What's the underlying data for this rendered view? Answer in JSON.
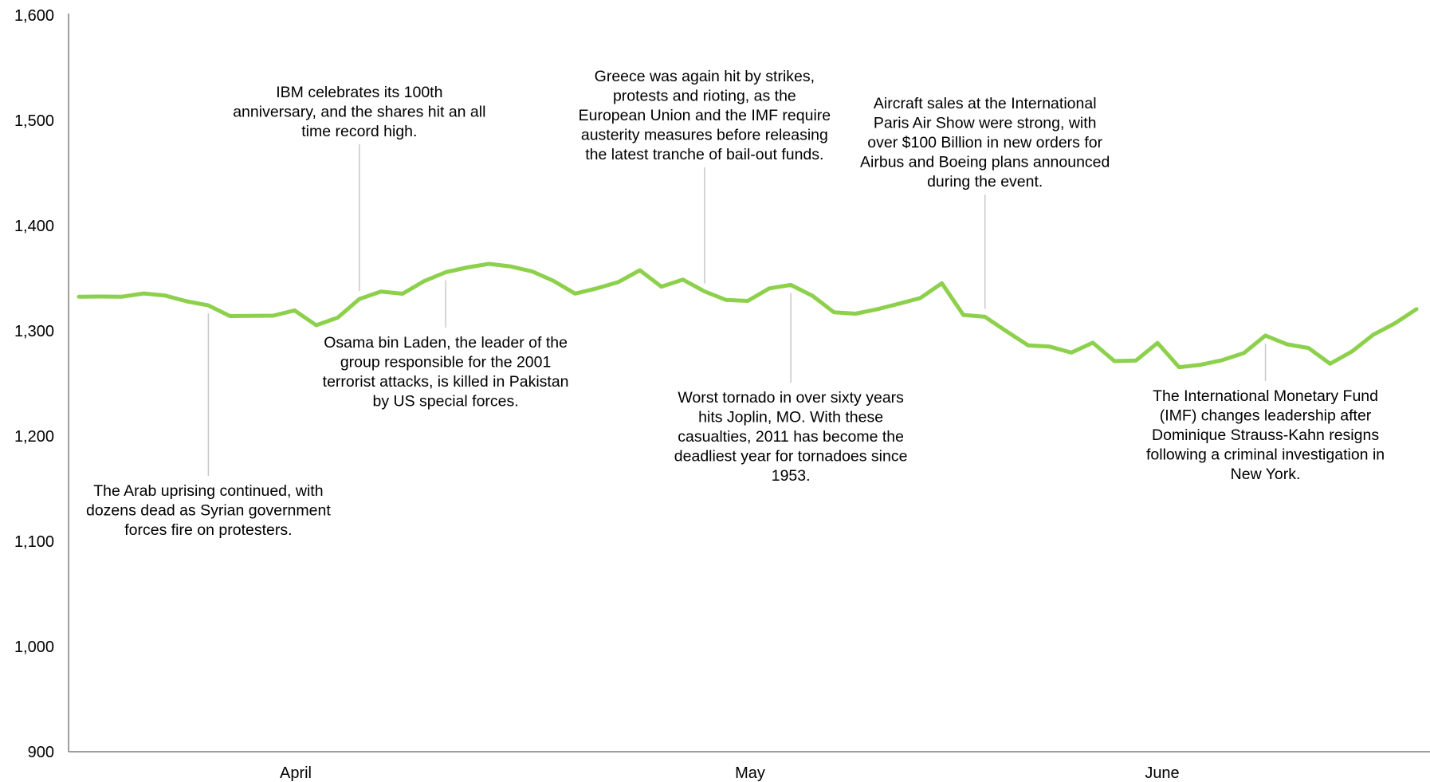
{
  "chart_data": {
    "type": "line",
    "title": "",
    "xlabel": "",
    "ylabel": "",
    "ylim": [
      900,
      1600
    ],
    "yticks": [
      "1,600",
      "1,500",
      "1,400",
      "1,300",
      "1,200",
      "1,100",
      "1,000",
      "900"
    ],
    "ytick_values": [
      1600,
      1500,
      1400,
      1300,
      1200,
      1100,
      1000,
      900
    ],
    "month_labels": [
      "April",
      "May",
      "June"
    ],
    "grid": false,
    "legend": "none",
    "line_color": "#8cd04c",
    "series": [
      {
        "values": [
          1332.4,
          1332.6,
          1332.4,
          1335.5,
          1333.5,
          1328.0,
          1324.2,
          1314.0,
          1314.2,
          1314.4,
          1319.4,
          1305.3,
          1312.6,
          1330.2,
          1337.3,
          1335.2,
          1347.2,
          1355.7,
          1360.2,
          1363.6,
          1361.2,
          1356.5,
          1347.4,
          1335.4,
          1340.3,
          1346.3,
          1357.6,
          1342.0,
          1348.6,
          1337.4,
          1329.3,
          1328.4,
          1340.3,
          1343.6,
          1333.3,
          1317.6,
          1316.3,
          1320.5,
          1325.7,
          1331.1,
          1345.2,
          1315.1,
          1313.3,
          1299.5,
          1286.2,
          1285.0,
          1279.3,
          1288.7,
          1271.2,
          1271.8,
          1288.5,
          1265.4,
          1267.7,
          1272.1,
          1278.9,
          1295.5,
          1287.2,
          1283.6,
          1268.7,
          1280.2,
          1296.4,
          1307.1,
          1320.6
        ]
      }
    ],
    "annotations": [
      {
        "index": 6,
        "position": "below",
        "lines": [
          "The Arab uprising continued, with",
          "dozens dead as Syrian government",
          "forces fire on protesters."
        ]
      },
      {
        "index": 13,
        "position": "above",
        "lines": [
          "IBM celebrates its 100th",
          "anniversary, and the shares hit an all",
          "time record high."
        ]
      },
      {
        "index": 17,
        "position": "below",
        "lines": [
          "Osama bin Laden, the leader of the",
          "group responsible for the 2001",
          "terrorist attacks, is killed in Pakistan",
          "by US special forces."
        ]
      },
      {
        "index": 29,
        "position": "above",
        "lines": [
          "Greece was again hit by strikes,",
          "protests and rioting, as the",
          "European Union and the IMF require",
          "austerity measures before releasing",
          "the latest tranche of bail-out funds."
        ]
      },
      {
        "index": 33,
        "position": "below",
        "lines": [
          "Worst tornado in over sixty years",
          "hits Joplin, MO. With these",
          "casualties, 2011 has become the",
          "deadliest year for tornadoes since",
          "1953."
        ]
      },
      {
        "index": 42,
        "position": "above",
        "lines": [
          "Aircraft sales at the International",
          "Paris Air Show were strong, with",
          "over $100 Billion in new orders for",
          "Airbus and Boeing plans announced",
          "during the event."
        ]
      },
      {
        "index": 55,
        "position": "below",
        "lines": [
          "The International Monetary Fund",
          "(IMF) changes leadership after",
          "Dominique Strauss-Kahn resigns",
          "following a criminal investigation in",
          "New York."
        ]
      }
    ]
  }
}
